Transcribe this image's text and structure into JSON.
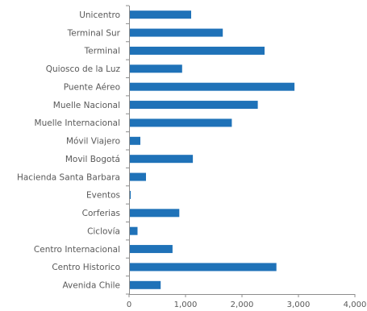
{
  "chart_data": {
    "type": "bar",
    "orientation": "horizontal",
    "categories": [
      "Unicentro",
      "Terminal Sur",
      "Terminal",
      "Quiosco de la Luz",
      "Puente Aéreo",
      "Muelle Nacional",
      "Muelle Internacional",
      "Móvil Viajero",
      "Movil Bogotá",
      "Hacienda Santa Barbara",
      "Eventos",
      "Corferias",
      "Ciclovía",
      "Centro Internacional",
      "Centro Historico",
      "Avenida Chile"
    ],
    "values": [
      1100,
      1660,
      2400,
      940,
      2930,
      2280,
      1820,
      200,
      1130,
      300,
      30,
      890,
      150,
      770,
      2610,
      560
    ],
    "xlim": [
      0,
      4000
    ],
    "xticks": [
      0,
      1000,
      2000,
      3000,
      4000
    ],
    "xtick_labels": [
      "0",
      "1,000",
      "2,000",
      "3,000",
      "4,000"
    ],
    "title": "",
    "xlabel": "",
    "ylabel": "",
    "grid": false,
    "legend": "none",
    "bar_color": "#1f72b8",
    "text_color": "#595959",
    "axis_color": "#8c8c8c"
  }
}
